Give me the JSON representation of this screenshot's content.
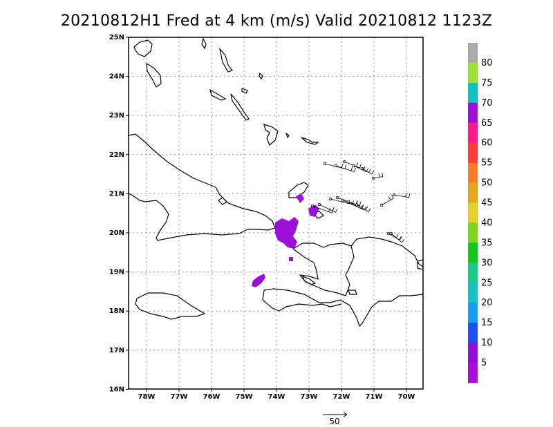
{
  "title": "20210812H1 Fred at 4 km (m/s) Valid 20210812  1123Z",
  "lat_labels": [
    "25N",
    "24N",
    "23N",
    "22N",
    "21N",
    "20N",
    "19N",
    "18N",
    "17N",
    "16N"
  ],
  "lon_labels": [
    "78W",
    "77W",
    "76W",
    "75W",
    "74W",
    "73W",
    "72W",
    "71W",
    "70W"
  ],
  "colorbar": {
    "labels": [
      "80",
      "75",
      "70",
      "65",
      "60",
      "55",
      "50",
      "45",
      "40",
      "35",
      "30",
      "25",
      "20",
      "15",
      "10",
      "5"
    ],
    "colors": [
      "#a9a9a9",
      "#9ce13a",
      "#0ec0c0",
      "#9a10d6",
      "#ff1b8c",
      "#ff3c3c",
      "#ff7a2a",
      "#e3a621",
      "#e6cf2c",
      "#7dd41f",
      "#12c81e",
      "#1acb83",
      "#18c0c6",
      "#149ff0",
      "#1e50f0",
      "#8f10d4",
      "#a412d6"
    ]
  },
  "reference_vector": {
    "label": "50"
  },
  "icons": {
    "wind_barb": "wind-barb-icon",
    "reference_arrow": "arrow-right-icon"
  }
}
